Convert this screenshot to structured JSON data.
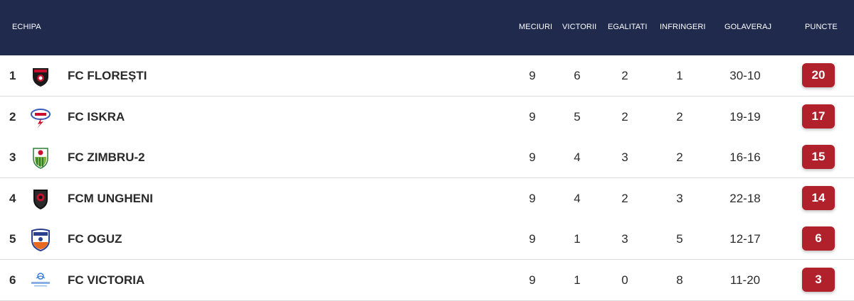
{
  "header": {
    "team": "ECHIPA",
    "played": "MECIURI",
    "wins": "VICTORII",
    "draws": "EGALITATI",
    "losses": "INFRINGERI",
    "goal_diff": "GOLAVERAJ",
    "points": "PUNCTE"
  },
  "colors": {
    "header_bg": "#1f2a4d",
    "points_badge": "#b0212c"
  },
  "rows": [
    {
      "rank": "1",
      "team": "FC FLOREȘTI",
      "logo": "floresti-crest-icon",
      "played": "9",
      "wins": "6",
      "draws": "2",
      "losses": "1",
      "goals": "30-10",
      "points": "20"
    },
    {
      "rank": "2",
      "team": "FC ISKRA",
      "logo": "iskra-crest-icon",
      "played": "9",
      "wins": "5",
      "draws": "2",
      "losses": "2",
      "goals": "19-19",
      "points": "17"
    },
    {
      "rank": "3",
      "team": "FC ZIMBRU-2",
      "logo": "zimbru-crest-icon",
      "played": "9",
      "wins": "4",
      "draws": "3",
      "losses": "2",
      "goals": "16-16",
      "points": "15"
    },
    {
      "rank": "4",
      "team": "FCM UNGHENI",
      "logo": "ungheni-crest-icon",
      "played": "9",
      "wins": "4",
      "draws": "2",
      "losses": "3",
      "goals": "22-18",
      "points": "14"
    },
    {
      "rank": "5",
      "team": "FC OGUZ",
      "logo": "oguz-crest-icon",
      "played": "9",
      "wins": "1",
      "draws": "3",
      "losses": "5",
      "goals": "12-17",
      "points": "6"
    },
    {
      "rank": "6",
      "team": "FC VICTORIA",
      "logo": "victoria-crest-icon",
      "played": "9",
      "wins": "1",
      "draws": "0",
      "losses": "8",
      "goals": "11-20",
      "points": "3"
    }
  ]
}
